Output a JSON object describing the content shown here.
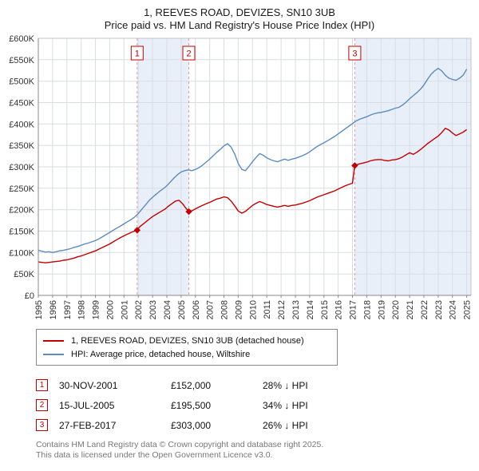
{
  "header": {
    "title": "1, REEVES ROAD, DEVIZES, SN10 3UB",
    "subtitle": "Price paid vs. HM Land Registry's House Price Index (HPI)"
  },
  "chart_data": {
    "type": "line",
    "xlim": [
      1995,
      2025.3
    ],
    "ylim": [
      0,
      600
    ],
    "x_ticks": [
      1995,
      1996,
      1997,
      1998,
      1999,
      2000,
      2001,
      2002,
      2003,
      2004,
      2005,
      2006,
      2007,
      2008,
      2009,
      2010,
      2011,
      2012,
      2013,
      2014,
      2015,
      2016,
      2017,
      2018,
      2019,
      2020,
      2021,
      2022,
      2023,
      2024,
      2025
    ],
    "y_ticks": [
      {
        "v": 0,
        "label": "£0"
      },
      {
        "v": 50,
        "label": "£50K"
      },
      {
        "v": 100,
        "label": "£100K"
      },
      {
        "v": 150,
        "label": "£150K"
      },
      {
        "v": 200,
        "label": "£200K"
      },
      {
        "v": 250,
        "label": "£250K"
      },
      {
        "v": 300,
        "label": "£300K"
      },
      {
        "v": 350,
        "label": "£350K"
      },
      {
        "v": 400,
        "label": "£400K"
      },
      {
        "v": 450,
        "label": "£450K"
      },
      {
        "v": 500,
        "label": "£500K"
      },
      {
        "v": 550,
        "label": "£550K"
      },
      {
        "v": 600,
        "label": "£600K"
      }
    ],
    "colors": {
      "band": "#e9eff8",
      "grid": "#d9dde3",
      "frame": "#c0c6ce",
      "sale_line": "#e39a9a",
      "axis": "#888888"
    },
    "bands": [
      [
        2001.92,
        2005.54
      ],
      [
        2017.16,
        2025.3
      ]
    ],
    "series": [
      {
        "name": "1, REEVES ROAD, DEVIZES, SN10 3UB (detached house)",
        "color": "#c00000",
        "points": [
          [
            1995,
            78
          ],
          [
            1995.25,
            77
          ],
          [
            1995.5,
            76
          ],
          [
            1995.75,
            77
          ],
          [
            1996,
            78
          ],
          [
            1996.25,
            79
          ],
          [
            1996.5,
            80
          ],
          [
            1996.75,
            82
          ],
          [
            1997,
            83
          ],
          [
            1997.25,
            85
          ],
          [
            1997.5,
            87
          ],
          [
            1997.75,
            90
          ],
          [
            1998,
            92
          ],
          [
            1998.25,
            95
          ],
          [
            1998.5,
            98
          ],
          [
            1998.75,
            101
          ],
          [
            1999,
            104
          ],
          [
            1999.25,
            108
          ],
          [
            1999.5,
            112
          ],
          [
            1999.75,
            116
          ],
          [
            2000,
            120
          ],
          [
            2000.25,
            125
          ],
          [
            2000.5,
            130
          ],
          [
            2000.75,
            135
          ],
          [
            2001,
            139
          ],
          [
            2001.25,
            143
          ],
          [
            2001.5,
            147
          ],
          [
            2001.92,
            152
          ],
          [
            2002.1,
            160
          ],
          [
            2002.4,
            168
          ],
          [
            2002.7,
            176
          ],
          [
            2003,
            184
          ],
          [
            2003.3,
            190
          ],
          [
            2003.6,
            196
          ],
          [
            2003.9,
            202
          ],
          [
            2004.1,
            208
          ],
          [
            2004.4,
            215
          ],
          [
            2004.6,
            220
          ],
          [
            2004.85,
            222
          ],
          [
            2005.1,
            214
          ],
          [
            2005.3,
            205
          ],
          [
            2005.54,
            195.5
          ],
          [
            2005.8,
            198
          ],
          [
            2006,
            202
          ],
          [
            2006.25,
            206
          ],
          [
            2006.5,
            210
          ],
          [
            2006.75,
            214
          ],
          [
            2007,
            217
          ],
          [
            2007.25,
            221
          ],
          [
            2007.5,
            225
          ],
          [
            2007.75,
            227
          ],
          [
            2008,
            230
          ],
          [
            2008.25,
            228
          ],
          [
            2008.5,
            220
          ],
          [
            2008.75,
            209
          ],
          [
            2009,
            197
          ],
          [
            2009.25,
            192
          ],
          [
            2009.5,
            196
          ],
          [
            2009.75,
            203
          ],
          [
            2010,
            210
          ],
          [
            2010.25,
            215
          ],
          [
            2010.5,
            219
          ],
          [
            2010.75,
            216
          ],
          [
            2011,
            212
          ],
          [
            2011.25,
            210
          ],
          [
            2011.5,
            208
          ],
          [
            2011.75,
            206
          ],
          [
            2012,
            208
          ],
          [
            2012.25,
            210
          ],
          [
            2012.5,
            208
          ],
          [
            2012.75,
            210
          ],
          [
            2013,
            211
          ],
          [
            2013.25,
            213
          ],
          [
            2013.5,
            215
          ],
          [
            2013.75,
            218
          ],
          [
            2014,
            221
          ],
          [
            2014.25,
            225
          ],
          [
            2014.5,
            229
          ],
          [
            2014.75,
            232
          ],
          [
            2015,
            235
          ],
          [
            2015.25,
            238
          ],
          [
            2015.5,
            241
          ],
          [
            2015.75,
            244
          ],
          [
            2016,
            248
          ],
          [
            2016.25,
            252
          ],
          [
            2016.5,
            256
          ],
          [
            2016.75,
            259
          ],
          [
            2017,
            262
          ],
          [
            2017.16,
            303
          ],
          [
            2017.5,
            307
          ],
          [
            2017.75,
            309
          ],
          [
            2018,
            311
          ],
          [
            2018.25,
            314
          ],
          [
            2018.5,
            316
          ],
          [
            2018.75,
            317
          ],
          [
            2019,
            317
          ],
          [
            2019.25,
            315
          ],
          [
            2019.5,
            314
          ],
          [
            2019.75,
            316
          ],
          [
            2020,
            317
          ],
          [
            2020.25,
            319
          ],
          [
            2020.5,
            323
          ],
          [
            2020.75,
            328
          ],
          [
            2021,
            333
          ],
          [
            2021.25,
            329
          ],
          [
            2021.5,
            334
          ],
          [
            2021.75,
            340
          ],
          [
            2022,
            347
          ],
          [
            2022.25,
            354
          ],
          [
            2022.5,
            360
          ],
          [
            2022.75,
            366
          ],
          [
            2023,
            372
          ],
          [
            2023.25,
            380
          ],
          [
            2023.5,
            390
          ],
          [
            2023.75,
            386
          ],
          [
            2024,
            379
          ],
          [
            2024.25,
            373
          ],
          [
            2024.5,
            377
          ],
          [
            2024.75,
            381
          ],
          [
            2025,
            387
          ]
        ]
      },
      {
        "name": "HPI: Average price, detached house, Wiltshire",
        "color": "#5b8cbe",
        "points": [
          [
            1995,
            105
          ],
          [
            1995.25,
            103
          ],
          [
            1995.5,
            101
          ],
          [
            1995.75,
            102
          ],
          [
            1996,
            100
          ],
          [
            1996.25,
            102
          ],
          [
            1996.5,
            104
          ],
          [
            1996.75,
            105
          ],
          [
            1997,
            107
          ],
          [
            1997.25,
            109
          ],
          [
            1997.5,
            112
          ],
          [
            1997.75,
            114
          ],
          [
            1998,
            117
          ],
          [
            1998.25,
            120
          ],
          [
            1998.5,
            122
          ],
          [
            1998.75,
            125
          ],
          [
            1999,
            128
          ],
          [
            1999.25,
            132
          ],
          [
            1999.5,
            137
          ],
          [
            1999.75,
            142
          ],
          [
            2000,
            147
          ],
          [
            2000.25,
            152
          ],
          [
            2000.5,
            157
          ],
          [
            2000.75,
            162
          ],
          [
            2001,
            167
          ],
          [
            2001.25,
            172
          ],
          [
            2001.5,
            177
          ],
          [
            2001.75,
            183
          ],
          [
            2002,
            191
          ],
          [
            2002.25,
            201
          ],
          [
            2002.5,
            211
          ],
          [
            2002.75,
            221
          ],
          [
            2003,
            229
          ],
          [
            2003.25,
            236
          ],
          [
            2003.5,
            243
          ],
          [
            2003.75,
            249
          ],
          [
            2004,
            256
          ],
          [
            2004.25,
            265
          ],
          [
            2004.5,
            274
          ],
          [
            2004.75,
            282
          ],
          [
            2005,
            288
          ],
          [
            2005.25,
            291
          ],
          [
            2005.5,
            293
          ],
          [
            2005.75,
            291
          ],
          [
            2006,
            294
          ],
          [
            2006.25,
            298
          ],
          [
            2006.5,
            304
          ],
          [
            2006.75,
            311
          ],
          [
            2007,
            318
          ],
          [
            2007.25,
            326
          ],
          [
            2007.5,
            334
          ],
          [
            2007.75,
            341
          ],
          [
            2008,
            349
          ],
          [
            2008.25,
            354
          ],
          [
            2008.5,
            346
          ],
          [
            2008.75,
            330
          ],
          [
            2009,
            308
          ],
          [
            2009.25,
            294
          ],
          [
            2009.5,
            291
          ],
          [
            2009.75,
            301
          ],
          [
            2010,
            312
          ],
          [
            2010.25,
            322
          ],
          [
            2010.5,
            331
          ],
          [
            2010.75,
            327
          ],
          [
            2011,
            321
          ],
          [
            2011.25,
            317
          ],
          [
            2011.5,
            314
          ],
          [
            2011.75,
            312
          ],
          [
            2012,
            315
          ],
          [
            2012.25,
            318
          ],
          [
            2012.5,
            315
          ],
          [
            2012.75,
            318
          ],
          [
            2013,
            320
          ],
          [
            2013.25,
            323
          ],
          [
            2013.5,
            326
          ],
          [
            2013.75,
            330
          ],
          [
            2014,
            335
          ],
          [
            2014.25,
            341
          ],
          [
            2014.5,
            347
          ],
          [
            2014.75,
            352
          ],
          [
            2015,
            356
          ],
          [
            2015.25,
            361
          ],
          [
            2015.5,
            366
          ],
          [
            2015.75,
            371
          ],
          [
            2016,
            377
          ],
          [
            2016.25,
            383
          ],
          [
            2016.5,
            389
          ],
          [
            2016.75,
            395
          ],
          [
            2017,
            401
          ],
          [
            2017.25,
            407
          ],
          [
            2017.5,
            411
          ],
          [
            2017.75,
            414
          ],
          [
            2018,
            417
          ],
          [
            2018.25,
            421
          ],
          [
            2018.5,
            424
          ],
          [
            2018.75,
            426
          ],
          [
            2019,
            427
          ],
          [
            2019.25,
            429
          ],
          [
            2019.5,
            431
          ],
          [
            2019.75,
            434
          ],
          [
            2020,
            437
          ],
          [
            2020.25,
            439
          ],
          [
            2020.5,
            444
          ],
          [
            2020.75,
            451
          ],
          [
            2021,
            459
          ],
          [
            2021.25,
            466
          ],
          [
            2021.5,
            473
          ],
          [
            2021.75,
            481
          ],
          [
            2022,
            491
          ],
          [
            2022.25,
            504
          ],
          [
            2022.5,
            516
          ],
          [
            2022.75,
            524
          ],
          [
            2023,
            530
          ],
          [
            2023.25,
            524
          ],
          [
            2023.5,
            514
          ],
          [
            2023.75,
            507
          ],
          [
            2024,
            504
          ],
          [
            2024.25,
            502
          ],
          [
            2024.5,
            507
          ],
          [
            2024.75,
            514
          ],
          [
            2025,
            528
          ]
        ]
      }
    ],
    "sales": [
      {
        "n": "1",
        "x": 2001.92,
        "price": 152,
        "date": "30-NOV-2001",
        "amount": "£152,000",
        "pct": "28% ↓ HPI"
      },
      {
        "n": "2",
        "x": 2005.54,
        "price": 195.5,
        "date": "15-JUL-2005",
        "amount": "£195,500",
        "pct": "34% ↓ HPI"
      },
      {
        "n": "3",
        "x": 2017.16,
        "price": 303,
        "date": "27-FEB-2017",
        "amount": "£303,000",
        "pct": "26% ↓ HPI"
      }
    ]
  },
  "footer": {
    "line1": "Contains HM Land Registry data © Crown copyright and database right 2025.",
    "line2": "This data is licensed under the Open Government Licence v3.0."
  }
}
